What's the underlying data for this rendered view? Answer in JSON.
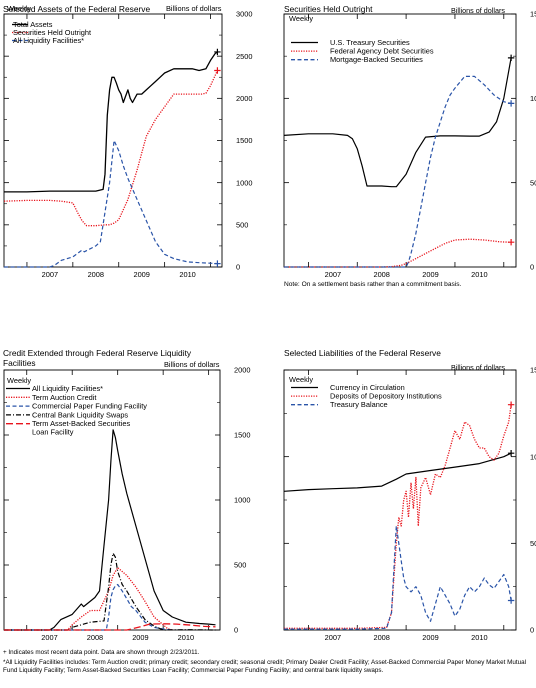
{
  "chart_data": [
    {
      "type": "line",
      "title": "Selected Assets of the Federal Reserve",
      "frequency": "Weekly",
      "units": "Billions of dollars",
      "ylim": [
        0,
        3000
      ],
      "yticks": [
        0,
        500,
        1000,
        1500,
        2000,
        2500,
        3000
      ],
      "xlim": [
        2006.5,
        2011.25
      ],
      "xticks": [
        "2007",
        "2008",
        "2009",
        "2010"
      ],
      "series": [
        {
          "name": "Total Assets",
          "style": "solid",
          "color": "#000000",
          "marker": "+",
          "x": [
            2006.5,
            2007.0,
            2007.5,
            2007.8,
            2008.0,
            2008.5,
            2008.66,
            2008.7,
            2008.75,
            2008.8,
            2008.85,
            2008.9,
            2008.95,
            2009.0,
            2009.05,
            2009.1,
            2009.2,
            2009.25,
            2009.3,
            2009.4,
            2009.5,
            2009.6,
            2009.7,
            2009.8,
            2009.9,
            2010.0,
            2010.2,
            2010.4,
            2010.5,
            2010.6,
            2010.75,
            2010.9,
            2011.0,
            2011.1,
            2011.15
          ],
          "y": [
            890,
            890,
            900,
            900,
            900,
            900,
            920,
            1100,
            1800,
            2100,
            2250,
            2250,
            2180,
            2100,
            2050,
            1950,
            2100,
            2000,
            1950,
            2050,
            2050,
            2100,
            2150,
            2200,
            2250,
            2300,
            2350,
            2350,
            2350,
            2350,
            2330,
            2350,
            2450,
            2530,
            2550
          ]
        },
        {
          "name": "Securities Held Outright",
          "style": "dotted",
          "color": "#e8141c",
          "marker": "+",
          "x": [
            2006.5,
            2007.0,
            2007.5,
            2007.75,
            2008.0,
            2008.1,
            2008.2,
            2008.3,
            2008.5,
            2008.7,
            2008.8,
            2008.9,
            2009.0,
            2009.2,
            2009.4,
            2009.6,
            2009.8,
            2010.0,
            2010.2,
            2010.4,
            2010.6,
            2010.8,
            2010.9,
            2011.0,
            2011.1,
            2011.15
          ],
          "y": [
            780,
            790,
            790,
            780,
            760,
            650,
            550,
            490,
            490,
            500,
            500,
            520,
            560,
            800,
            1150,
            1550,
            1750,
            1900,
            2050,
            2050,
            2050,
            2050,
            2060,
            2150,
            2270,
            2330
          ]
        },
        {
          "name": "All Liquidity Facilities*",
          "style": "dashed",
          "color": "#2a54a8",
          "marker": "+",
          "x": [
            2006.5,
            2007.0,
            2007.5,
            2007.6,
            2007.75,
            2008.0,
            2008.2,
            2008.25,
            2008.5,
            2008.6,
            2008.7,
            2008.8,
            2008.9,
            2009.0,
            2009.1,
            2009.2,
            2009.4,
            2009.6,
            2009.8,
            2010.0,
            2010.2,
            2010.5,
            2010.8,
            2011.0,
            2011.15
          ],
          "y": [
            0,
            0,
            0,
            20,
            80,
            120,
            200,
            180,
            250,
            300,
            650,
            1000,
            1500,
            1380,
            1200,
            1050,
            800,
            550,
            300,
            150,
            100,
            60,
            50,
            45,
            40
          ]
        }
      ]
    },
    {
      "type": "line",
      "title": "Securities Held Outright",
      "frequency": "Weekly",
      "units": "Billions of dollars",
      "ylim": [
        0,
        1500
      ],
      "yticks": [
        0,
        500,
        1000,
        1500
      ],
      "xlim": [
        2006.5,
        2011.25
      ],
      "xticks": [
        "2007",
        "2008",
        "2009",
        "2010"
      ],
      "note": "Note: On a settlement basis rather than a commitment basis.",
      "series": [
        {
          "name": "U.S. Treasury Securities",
          "style": "solid",
          "color": "#000000",
          "marker": "+",
          "x": [
            2006.5,
            2007.0,
            2007.5,
            2007.8,
            2007.9,
            2008.0,
            2008.1,
            2008.2,
            2008.3,
            2008.5,
            2008.7,
            2008.8,
            2009.0,
            2009.2,
            2009.4,
            2009.7,
            2010.0,
            2010.3,
            2010.5,
            2010.7,
            2010.85,
            2011.0,
            2011.15
          ],
          "y": [
            780,
            790,
            790,
            780,
            760,
            700,
            600,
            480,
            480,
            480,
            476,
            476,
            550,
            680,
            770,
            777,
            777,
            776,
            776,
            800,
            860,
            1000,
            1240
          ]
        },
        {
          "name": "Federal Agency Debt Securities",
          "style": "dotted",
          "color": "#e8141c",
          "marker": "+",
          "x": [
            2006.5,
            2008.5,
            2008.7,
            2008.9,
            2009.0,
            2009.2,
            2009.4,
            2009.6,
            2009.8,
            2010.0,
            2010.3,
            2010.6,
            2010.9,
            2011.0,
            2011.15
          ],
          "y": [
            0,
            0,
            2,
            10,
            20,
            50,
            80,
            110,
            140,
            160,
            165,
            160,
            150,
            148,
            147
          ]
        },
        {
          "name": "Mortgage-Backed Securities",
          "style": "dashed",
          "color": "#2a54a8",
          "marker": "+",
          "x": [
            2006.5,
            2008.9,
            2009.0,
            2009.05,
            2009.1,
            2009.2,
            2009.3,
            2009.4,
            2009.5,
            2009.6,
            2009.7,
            2009.8,
            2009.9,
            2010.0,
            2010.2,
            2010.4,
            2010.6,
            2010.8,
            2011.0,
            2011.15
          ],
          "y": [
            0,
            0,
            0,
            30,
            80,
            200,
            350,
            500,
            650,
            770,
            860,
            950,
            1020,
            1060,
            1130,
            1130,
            1080,
            1020,
            980,
            970
          ]
        }
      ]
    },
    {
      "type": "line",
      "title": "Credit Extended through Federal Reserve Liquidity Facilities",
      "frequency": "Weekly",
      "units": "Billions of dollars",
      "ylim": [
        0,
        2000
      ],
      "yticks": [
        0,
        500,
        1000,
        1500,
        2000
      ],
      "xlim": [
        2006.5,
        2011.25
      ],
      "xticks": [
        "2007",
        "2008",
        "2009",
        "2010"
      ],
      "series": [
        {
          "name": "All Liquidity Facilities*",
          "style": "solid",
          "color": "#000000",
          "x": [
            2006.5,
            2007.0,
            2007.5,
            2007.6,
            2007.75,
            2008.0,
            2008.2,
            2008.25,
            2008.5,
            2008.6,
            2008.7,
            2008.8,
            2008.85,
            2008.9,
            2008.95,
            2009.0,
            2009.1,
            2009.2,
            2009.4,
            2009.6,
            2009.8,
            2010.0,
            2010.2,
            2010.5,
            2010.8,
            2011.0,
            2011.15
          ],
          "y": [
            0,
            0,
            0,
            20,
            80,
            120,
            200,
            180,
            250,
            300,
            650,
            1000,
            1300,
            1540,
            1480,
            1380,
            1200,
            1050,
            800,
            550,
            300,
            150,
            100,
            60,
            50,
            45,
            40
          ]
        },
        {
          "name": "Term Auction Credit",
          "style": "dotted",
          "color": "#e8141c",
          "x": [
            2006.5,
            2007.9,
            2008.0,
            2008.2,
            2008.4,
            2008.6,
            2008.8,
            2008.9,
            2009.0,
            2009.1,
            2009.2,
            2009.4,
            2009.6,
            2009.8,
            2010.0,
            2010.1,
            2010.2
          ],
          "y": [
            0,
            0,
            40,
            100,
            150,
            150,
            300,
            420,
            480,
            450,
            420,
            330,
            220,
            100,
            40,
            10,
            0
          ]
        },
        {
          "name": "Commercial Paper Funding Facility",
          "style": "dashed",
          "color": "#2a54a8",
          "x": [
            2006.5,
            2008.75,
            2008.8,
            2008.85,
            2008.9,
            2008.95,
            2009.0,
            2009.1,
            2009.2,
            2009.3,
            2009.4,
            2009.6,
            2009.8,
            2010.0,
            2010.2
          ],
          "y": [
            0,
            0,
            100,
            250,
            310,
            340,
            350,
            300,
            240,
            180,
            150,
            60,
            20,
            8,
            0
          ]
        },
        {
          "name": "Central Bank Liquidity Swaps",
          "style": "dashdot",
          "color": "#000000",
          "x": [
            2006.5,
            2007.9,
            2008.0,
            2008.4,
            2008.7,
            2008.8,
            2008.85,
            2008.9,
            2008.95,
            2009.0,
            2009.1,
            2009.2,
            2009.4,
            2009.6,
            2009.8,
            2010.0,
            2010.5,
            2011.15
          ],
          "y": [
            0,
            0,
            20,
            60,
            70,
            330,
            500,
            590,
            560,
            450,
            350,
            300,
            180,
            80,
            30,
            0,
            2,
            0
          ]
        },
        {
          "name": "Term Asset-Backed Securities Loan Facility",
          "style": "longdash",
          "color": "#e8141c",
          "x": [
            2006.5,
            2009.2,
            2009.3,
            2009.5,
            2009.7,
            2010.0,
            2010.3,
            2010.6,
            2010.9,
            2011.15
          ],
          "y": [
            0,
            0,
            8,
            25,
            45,
            48,
            45,
            38,
            28,
            25
          ]
        }
      ]
    },
    {
      "type": "line",
      "title": "Selected Liabilities of the Federal Reserve",
      "frequency": "Weekly",
      "units": "Billions of dollars",
      "ylim": [
        0,
        1500
      ],
      "yticks": [
        0,
        500,
        1000,
        1500
      ],
      "xlim": [
        2006.5,
        2011.25
      ],
      "xticks": [
        "2007",
        "2008",
        "2009",
        "2010"
      ],
      "series": [
        {
          "name": "Currency in Circulation",
          "style": "solid",
          "color": "#000000",
          "marker": "+",
          "x": [
            2006.5,
            2007.0,
            2007.5,
            2008.0,
            2008.5,
            2008.8,
            2009.0,
            2009.5,
            2010.0,
            2010.5,
            2011.0,
            2011.15
          ],
          "y": [
            800,
            810,
            815,
            820,
            830,
            870,
            900,
            920,
            940,
            960,
            1000,
            1020
          ]
        },
        {
          "name": "Deposits of Depository Institutions",
          "style": "dotted",
          "color": "#e8141c",
          "marker": "+",
          "x": [
            2006.5,
            2007.5,
            2008.0,
            2008.6,
            2008.7,
            2008.75,
            2008.8,
            2008.85,
            2008.9,
            2008.95,
            2009.0,
            2009.05,
            2009.1,
            2009.15,
            2009.2,
            2009.25,
            2009.3,
            2009.4,
            2009.5,
            2009.6,
            2009.7,
            2009.8,
            2009.9,
            2010.0,
            2010.1,
            2010.2,
            2010.3,
            2010.4,
            2010.5,
            2010.6,
            2010.7,
            2010.8,
            2010.9,
            2011.0,
            2011.1,
            2011.15
          ],
          "y": [
            10,
            10,
            10,
            15,
            100,
            300,
            500,
            650,
            600,
            750,
            800,
            650,
            850,
            700,
            880,
            600,
            820,
            880,
            780,
            900,
            880,
            950,
            1050,
            1150,
            1100,
            1200,
            1180,
            1100,
            1050,
            1050,
            1000,
            980,
            1020,
            1120,
            1200,
            1300
          ]
        },
        {
          "name": "Treasury Balance",
          "style": "dashed",
          "color": "#2a54a8",
          "marker": "+",
          "x": [
            2006.5,
            2007.5,
            2008.0,
            2008.6,
            2008.7,
            2008.75,
            2008.8,
            2008.85,
            2008.9,
            2008.95,
            2009.0,
            2009.1,
            2009.2,
            2009.3,
            2009.4,
            2009.5,
            2009.6,
            2009.7,
            2009.8,
            2009.9,
            2010.0,
            2010.1,
            2010.2,
            2010.3,
            2010.4,
            2010.5,
            2010.6,
            2010.7,
            2010.8,
            2010.9,
            2011.0,
            2011.1,
            2011.15
          ],
          "y": [
            5,
            5,
            5,
            10,
            100,
            350,
            600,
            500,
            400,
            300,
            250,
            220,
            250,
            200,
            100,
            50,
            150,
            250,
            200,
            150,
            80,
            120,
            200,
            250,
            220,
            250,
            300,
            260,
            240,
            280,
            320,
            250,
            170
          ]
        }
      ]
    }
  ],
  "footnotes": [
    "+ Indicates most recent data point. Data are shown through 2/23/2011.",
    "*All Liquidity Facilities includes: Term Auction credit; primary credit; secondary credit; seasonal credit; Primary Dealer Credit Facility; Asset-Backed Commercial Paper Money Market Mutual Fund Liquidity Facility; Term Asset-Backed Securities Loan Facility; Commercial Paper Funding Facility; and central bank liquidity swaps."
  ]
}
